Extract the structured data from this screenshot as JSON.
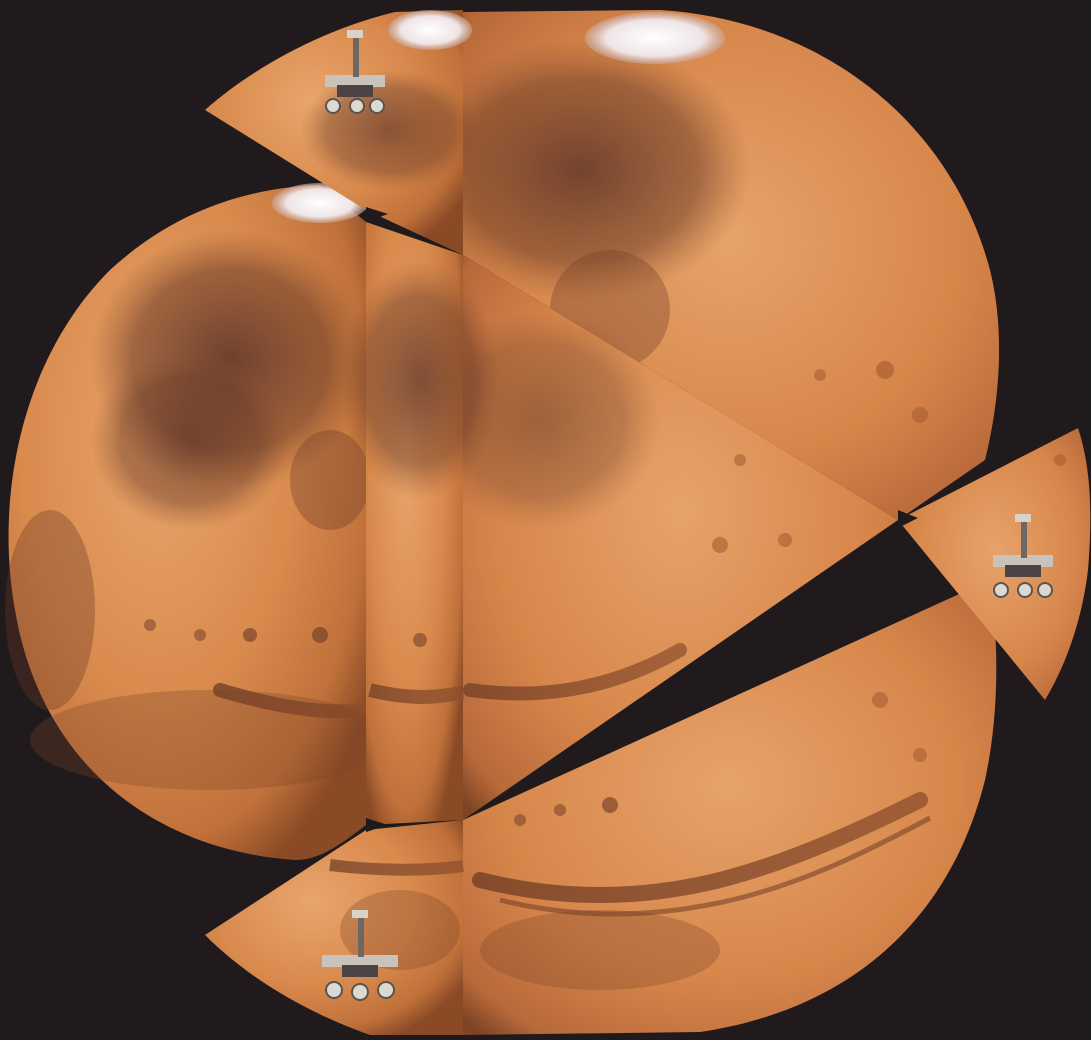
{
  "scene": {
    "kind": "photo-collage",
    "subject": "planet-mars",
    "palette": {
      "background": "#201a1d",
      "mars_light": "#e6a269",
      "mars_mid": "#d8874a",
      "mars_dark": "#a85a2c",
      "mars_shadow": "#6e3c22",
      "dark_albedo": "#5c3426",
      "polar_cap": "#f3eef0",
      "rover_body": "#4a4544",
      "rover_panel": "#c9c3bb",
      "rover_wheel": "#dcd8d2"
    },
    "elements": [
      "mars-disc-large-right",
      "mars-disc-left",
      "mars-wedge-top",
      "mars-wedge-right",
      "mars-wedge-bottom",
      "polar-cap",
      "dark-albedo-region",
      "canyon-system",
      "rover-illustration"
    ]
  }
}
